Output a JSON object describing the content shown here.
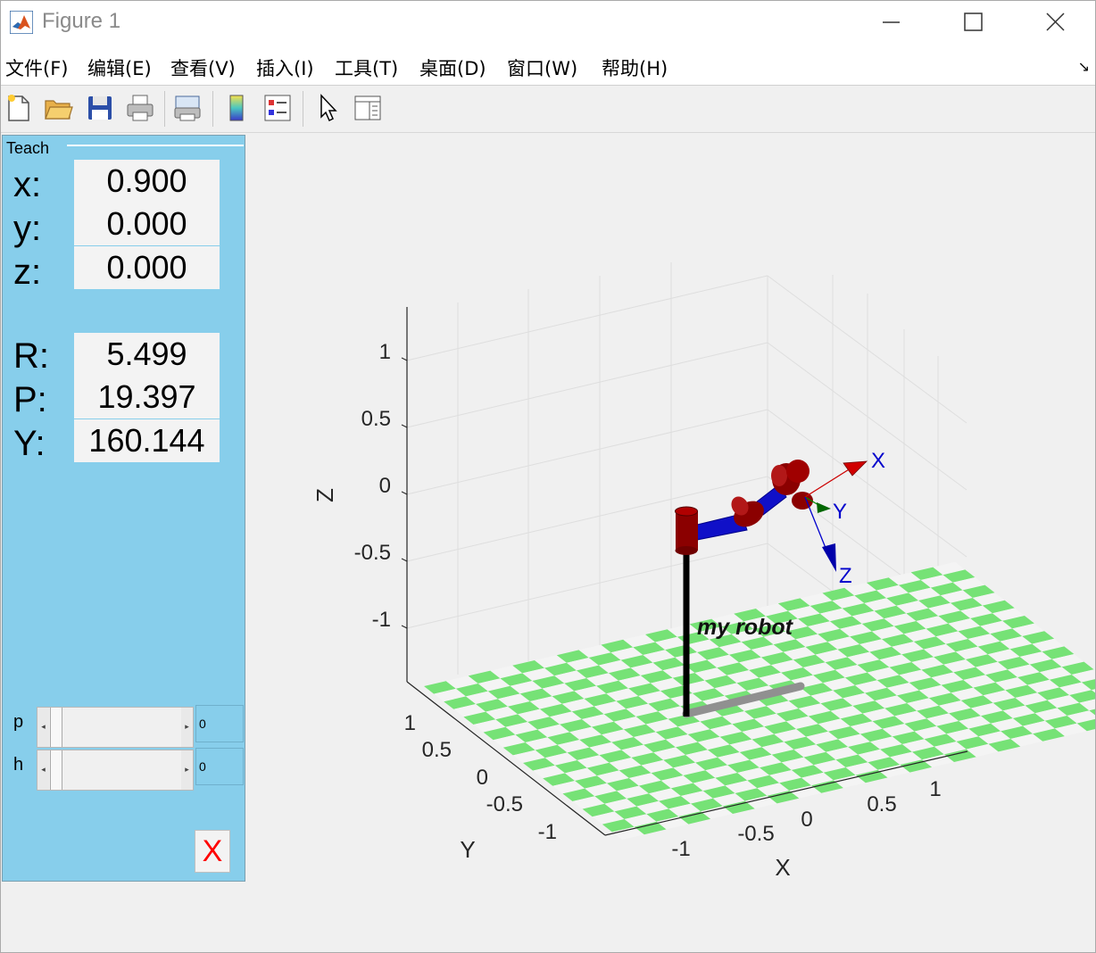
{
  "window": {
    "title": "Figure 1"
  },
  "menu": [
    "文件(F)",
    "编辑(E)",
    "查看(V)",
    "插入(I)",
    "工具(T)",
    "桌面(D)",
    "窗口(W)",
    "帮助(H)"
  ],
  "toolbar": [
    "new-figure",
    "open-file",
    "save",
    "print",
    "print-preview",
    "insert-colorbar",
    "insert-legend",
    "edit-plot",
    "property-editor"
  ],
  "teach": {
    "title": "Teach",
    "x_label": "x:",
    "x_value": "0.900",
    "y_label": "y:",
    "y_value": "0.000",
    "z_label": "z:",
    "z_value": "0.000",
    "r_label": "R:",
    "r_value": "5.499",
    "p_label": "P:",
    "p_value": "19.397",
    "yaw_label": "Y:",
    "yaw_value": "160.144",
    "slider_p_label": "p",
    "slider_p_value": "0",
    "slider_h_label": "h",
    "slider_h_value": "0",
    "close_label": "X"
  },
  "plot": {
    "robot_name": "my robot",
    "zlabel": "Z",
    "xlabel": "X",
    "ylabel": "Y",
    "z_ticks": [
      "1",
      "0.5",
      "0",
      "-0.5",
      "-1"
    ],
    "x_ticks": [
      "-1",
      "-0.5",
      "0",
      "0.5",
      "1"
    ],
    "y_ticks": [
      "1",
      "0.5",
      "0",
      "-0.5",
      "-1"
    ],
    "frame_x": "X",
    "frame_y": "Y",
    "frame_z": "Z",
    "floor_color": "#76e276",
    "link_color": "#0000cc",
    "joint_color": "#8b0000"
  }
}
